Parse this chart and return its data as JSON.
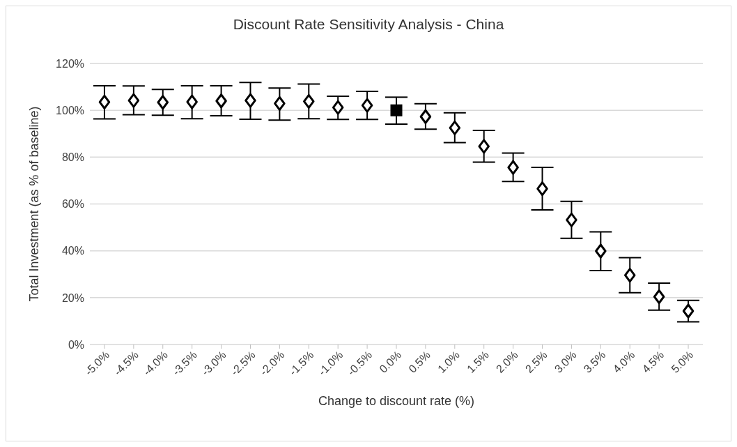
{
  "chart_data": {
    "type": "scatter",
    "title": "Discount Rate Sensitivity Analysis - China",
    "xlabel": "Change to discount rate (%)",
    "ylabel": "Total Investment (as % of baseline)",
    "categories": [
      "-5.0%",
      "-4.5%",
      "-4.0%",
      "-3.5%",
      "-3.0%",
      "-2.5%",
      "-2.0%",
      "-1.5%",
      "-1.0%",
      "-0.5%",
      "0.0%",
      "0.5%",
      "1.0%",
      "1.5%",
      "2.0%",
      "2.5%",
      "3.0%",
      "3.5%",
      "4.0%",
      "4.5%",
      "5.0%"
    ],
    "series": [
      {
        "color": "#000000",
        "marker": "diamond",
        "values": [
          103.5,
          104.2,
          103.4,
          103.6,
          104.0,
          104.2,
          102.9,
          103.8,
          101.2,
          102.1,
          null,
          97.3,
          92.5,
          84.6,
          75.6,
          66.5,
          53.2,
          39.9,
          29.6,
          20.4,
          14.3
        ],
        "errors": [
          [
            96.3,
            110.5
          ],
          [
            98.1,
            110.4
          ],
          [
            97.9,
            108.9
          ],
          [
            96.4,
            110.5
          ],
          [
            97.7,
            110.5
          ],
          [
            96.2,
            111.9
          ],
          [
            95.8,
            109.5
          ],
          [
            96.4,
            111.2
          ],
          [
            96.1,
            106.0
          ],
          [
            96.1,
            108.1
          ],
          null,
          [
            91.9,
            102.8
          ],
          [
            86.2,
            98.9
          ],
          [
            77.9,
            91.4
          ],
          [
            69.6,
            81.7
          ],
          [
            57.5,
            75.6
          ],
          [
            45.3,
            61.1
          ],
          [
            31.6,
            48.1
          ],
          [
            22.1,
            37.1
          ],
          [
            14.7,
            26.2
          ],
          [
            9.7,
            18.8
          ]
        ]
      },
      {
        "color": "#000000",
        "marker": "square",
        "values": [
          null,
          null,
          null,
          null,
          null,
          null,
          null,
          null,
          null,
          null,
          100,
          null,
          null,
          null,
          null,
          null,
          null,
          null,
          null,
          null,
          null
        ],
        "errors": [
          null,
          null,
          null,
          null,
          null,
          null,
          null,
          null,
          null,
          null,
          [
            94.1,
            105.6
          ],
          null,
          null,
          null,
          null,
          null,
          null,
          null,
          null,
          null,
          null
        ]
      }
    ],
    "ylim": [
      0,
      120
    ],
    "yticks": [
      {
        "value": 0,
        "label": "0%"
      },
      {
        "value": 20,
        "label": "20%"
      },
      {
        "value": 40,
        "label": "40%"
      },
      {
        "value": 60,
        "label": "60%"
      },
      {
        "value": 80,
        "label": "80%"
      },
      {
        "value": 100,
        "label": "100%"
      },
      {
        "value": 120,
        "label": "120%"
      }
    ],
    "grid": "y",
    "legend": false
  }
}
